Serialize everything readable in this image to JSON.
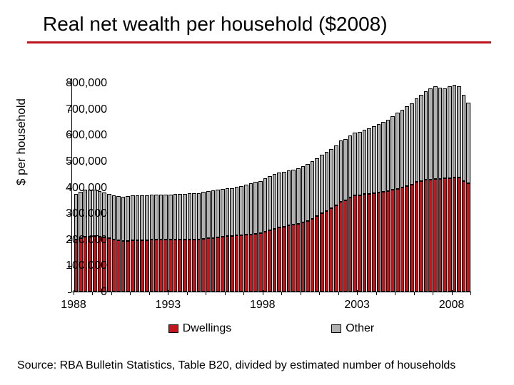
{
  "title": "Real net wealth per household ($2008)",
  "source": "Source: RBA Bulletin Statistics, Table B20, divided by estimated number of households",
  "chart": {
    "type": "stacked-bar",
    "ylabel": "$ per household",
    "ylim": [
      0,
      800000
    ],
    "ymax_plot": 820000,
    "ytick_step": 100000,
    "yticks": [
      0,
      100000,
      200000,
      300000,
      400000,
      500000,
      600000,
      700000,
      800000
    ],
    "ytick_labels": [
      "0",
      "100,000",
      "200,000",
      "300,000",
      "400,000",
      "500,000",
      "600,000",
      "700,000",
      "800,000"
    ],
    "xtick_years": [
      1988,
      1993,
      1998,
      2003,
      2008
    ],
    "start_year": 1988,
    "quarters_per_year": 4,
    "n_bars": 84,
    "series": [
      {
        "name": "Dwellings",
        "color": "#c3161c"
      },
      {
        "name": "Other",
        "color": "#b0b0b0"
      }
    ],
    "colors": {
      "title_underline": "#bc141a",
      "axis": "#000000",
      "bar_border": "#000000",
      "background": "#ffffff"
    },
    "label_fontsize": 17,
    "tick_fontsize": 16,
    "dwellings": [
      200000,
      205000,
      210000,
      210000,
      212000,
      210000,
      208000,
      205000,
      200000,
      198000,
      195000,
      195000,
      198000,
      198000,
      198000,
      198000,
      200000,
      200000,
      200000,
      200000,
      200000,
      200000,
      200000,
      200000,
      200000,
      200000,
      200000,
      202000,
      205000,
      205000,
      208000,
      210000,
      212000,
      212000,
      215000,
      215000,
      218000,
      220000,
      222000,
      225000,
      230000,
      235000,
      240000,
      245000,
      250000,
      255000,
      258000,
      260000,
      265000,
      270000,
      280000,
      290000,
      300000,
      310000,
      320000,
      330000,
      345000,
      350000,
      360000,
      370000,
      370000,
      375000,
      375000,
      378000,
      380000,
      382000,
      385000,
      390000,
      395000,
      400000,
      405000,
      410000,
      420000,
      425000,
      428000,
      430000,
      432000,
      432000,
      434000,
      436000,
      438000,
      438000,
      425000,
      415000
    ],
    "other": [
      175000,
      178000,
      180000,
      182000,
      178000,
      175000,
      172000,
      170000,
      168000,
      168000,
      168000,
      170000,
      170000,
      170000,
      170000,
      170000,
      172000,
      172000,
      172000,
      172000,
      172000,
      175000,
      175000,
      175000,
      178000,
      178000,
      178000,
      180000,
      180000,
      182000,
      182000,
      183000,
      185000,
      185000,
      188000,
      190000,
      192000,
      195000,
      198000,
      200000,
      205000,
      208000,
      210000,
      212000,
      210000,
      210000,
      210000,
      212000,
      215000,
      218000,
      220000,
      222000,
      225000,
      225000,
      228000,
      230000,
      235000,
      235000,
      238000,
      240000,
      242000,
      245000,
      250000,
      255000,
      262000,
      268000,
      275000,
      282000,
      290000,
      298000,
      305000,
      312000,
      320000,
      330000,
      340000,
      350000,
      355000,
      350000,
      345000,
      350000,
      355000,
      350000,
      330000,
      310000
    ]
  },
  "legend": {
    "items": [
      {
        "label": "Dwellings",
        "color": "#c3161c"
      },
      {
        "label": "Other",
        "color": "#b0b0b0"
      }
    ]
  }
}
